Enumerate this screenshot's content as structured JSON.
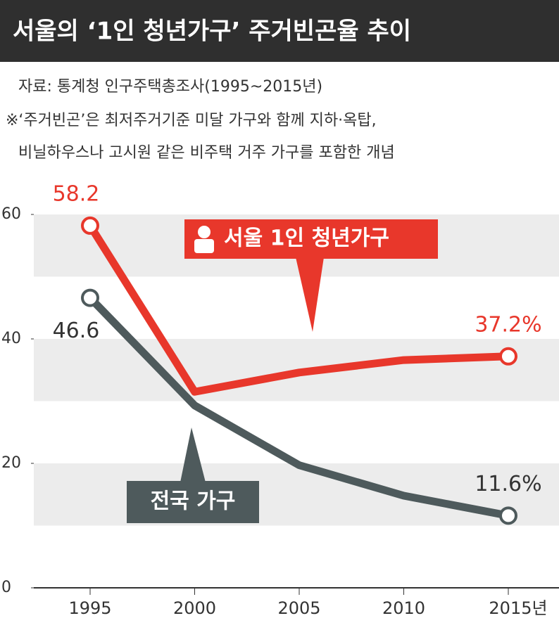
{
  "chart_data": {
    "type": "line",
    "title": "서울의 ‘1인 청년가구’ 주거빈곤율 추이",
    "source": "자료: 통계청 인구주택총조사(1995~2015년)",
    "notes": [
      "※‘주거빈곤’은 최저주거기준 미달 가구와 함께 지하·옥탑,",
      "비닐하우스나 고시원 같은 비주택 거주 가구를 포함한 개념"
    ],
    "categories": [
      "1995",
      "2000",
      "2005",
      "2010",
      "2015년"
    ],
    "series": [
      {
        "name": "서울 1인 청년가구",
        "color": "#e8372b",
        "values": [
          58.2,
          31.5,
          34.6,
          36.6,
          37.2
        ],
        "value_labels": [
          "58.2",
          null,
          null,
          null,
          "37.2%"
        ]
      },
      {
        "name": "전국 가구",
        "color": "#4e5a5c",
        "values": [
          46.6,
          29.3,
          19.7,
          14.8,
          11.6
        ],
        "value_labels": [
          "46.6",
          null,
          null,
          null,
          "11.6%"
        ]
      }
    ],
    "ylim": [
      0,
      60
    ],
    "yticks": [
      0,
      20,
      40,
      60
    ],
    "bands": true
  }
}
